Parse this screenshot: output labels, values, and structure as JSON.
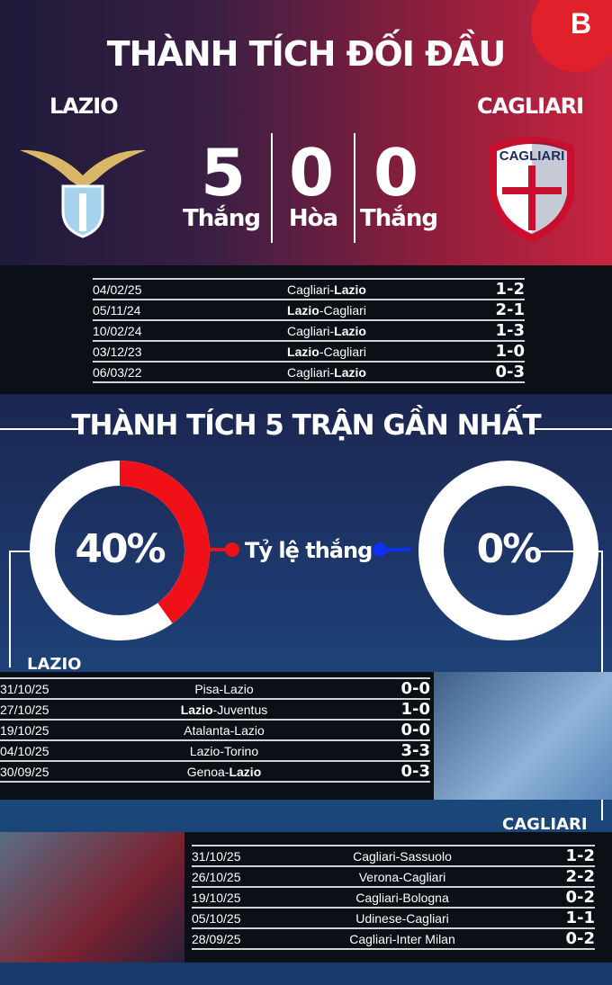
{
  "header": {
    "title": "THÀNH TÍCH ĐỐI ĐẦU",
    "brand_logo": "B"
  },
  "teams": {
    "home": "LAZIO",
    "away": "CAGLIARI",
    "away_crest_text": "CAGLIARI"
  },
  "summary": {
    "home_wins": "5",
    "draws": "0",
    "away_wins": "0",
    "home_wins_label": "Thắng",
    "draws_label": "Hòa",
    "away_wins_label": "Thắng"
  },
  "h2h": [
    {
      "date": "04/02/25",
      "home": "Cagliari",
      "away": "Lazio",
      "bold": "away",
      "score": "1-2"
    },
    {
      "date": "05/11/24",
      "home": "Lazio",
      "away": "Cagliari",
      "bold": "home",
      "score": "2-1"
    },
    {
      "date": "10/02/24",
      "home": "Cagliari",
      "away": "Lazio",
      "bold": "away",
      "score": "1-3"
    },
    {
      "date": "03/12/23",
      "home": "Lazio",
      "away": "Cagliari",
      "bold": "home",
      "score": "1-0"
    },
    {
      "date": "06/03/22",
      "home": "Cagliari",
      "away": "Lazio",
      "bold": "away",
      "score": "0-3"
    }
  ],
  "form": {
    "title": "THÀNH TÍCH 5 TRẬN GẦN NHẤT",
    "win_rate_label": "Tỷ lệ thắng",
    "home_win_rate": "40%",
    "home_win_rate_value": 40,
    "away_win_rate": "0%",
    "away_win_rate_value": 0,
    "colors": {
      "home": "#f01018",
      "away": "#1030f0"
    }
  },
  "lazio_recent": {
    "label": "LAZIO",
    "matches": [
      {
        "date": "31/10/25",
        "home": "Pisa",
        "away": "Lazio",
        "bold": "",
        "score": "0-0"
      },
      {
        "date": "27/10/25",
        "home": "Lazio",
        "away": "Juventus",
        "bold": "home",
        "score": "1-0"
      },
      {
        "date": "19/10/25",
        "home": "Atalanta",
        "away": "Lazio",
        "bold": "",
        "score": "0-0"
      },
      {
        "date": "04/10/25",
        "home": "Lazio",
        "away": "Torino",
        "bold": "",
        "score": "3-3"
      },
      {
        "date": "30/09/25",
        "home": "Genoa",
        "away": "Lazio",
        "bold": "away",
        "score": "0-3"
      }
    ]
  },
  "cagliari_recent": {
    "label": "CAGLIARI",
    "matches": [
      {
        "date": "31/10/25",
        "home": "Cagliari",
        "away": "Sassuolo",
        "bold": "",
        "score": "1-2"
      },
      {
        "date": "26/10/25",
        "home": "Verona",
        "away": "Cagliari",
        "bold": "",
        "score": "2-2"
      },
      {
        "date": "19/10/25",
        "home": "Cagliari",
        "away": "Bologna",
        "bold": "",
        "score": "0-2"
      },
      {
        "date": "05/10/25",
        "home": "Udinese",
        "away": "Cagliari",
        "bold": "",
        "score": "1-1"
      },
      {
        "date": "28/09/25",
        "home": "Cagliari",
        "away": "Inter Milan",
        "bold": "",
        "score": "0-2"
      }
    ]
  }
}
